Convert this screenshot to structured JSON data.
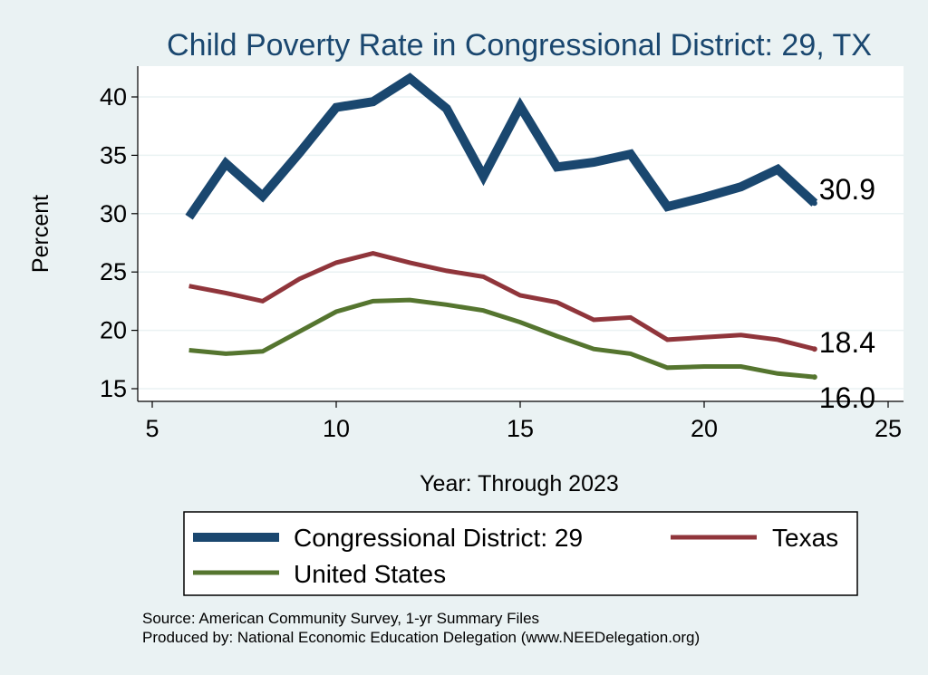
{
  "chart_data": {
    "type": "line",
    "title": "Child Poverty Rate in Congressional District:  29, TX",
    "xlabel": "Year: Through 2023",
    "ylabel": "Percent",
    "xlim": [
      5,
      25
    ],
    "ylim": [
      15,
      42
    ],
    "xticks": [
      5,
      10,
      15,
      20,
      25
    ],
    "yticks": [
      15,
      20,
      25,
      30,
      35,
      40
    ],
    "grid": true,
    "legend_position": "bottom",
    "series": [
      {
        "name": "Congressional District:  29",
        "color": "#1a476f",
        "x": [
          6,
          7,
          8,
          9,
          10,
          11,
          12,
          13,
          14,
          15,
          16,
          17,
          18,
          19,
          20,
          21,
          22,
          23
        ],
        "values": [
          29.7,
          34.3,
          31.5,
          35.2,
          39.1,
          39.6,
          41.6,
          39.0,
          33.2,
          39.2,
          34.0,
          34.4,
          35.1,
          30.6,
          31.4,
          32.3,
          33.8,
          30.9
        ],
        "end_label": "30.9"
      },
      {
        "name": "Texas",
        "color": "#90353b",
        "x": [
          6,
          7,
          8,
          9,
          10,
          11,
          12,
          13,
          14,
          15,
          16,
          17,
          18,
          19,
          20,
          21,
          22,
          23
        ],
        "values": [
          23.8,
          23.2,
          22.5,
          24.4,
          25.8,
          26.6,
          25.8,
          25.1,
          24.6,
          23.0,
          22.4,
          20.9,
          21.1,
          19.2,
          19.4,
          19.6,
          19.2,
          18.4
        ],
        "end_label": "18.4"
      },
      {
        "name": "United States",
        "color": "#55752f",
        "x": [
          6,
          7,
          8,
          9,
          10,
          11,
          12,
          13,
          14,
          15,
          16,
          17,
          18,
          19,
          20,
          21,
          22,
          23
        ],
        "values": [
          18.3,
          18.0,
          18.2,
          19.9,
          21.6,
          22.5,
          22.6,
          22.2,
          21.7,
          20.7,
          19.5,
          18.4,
          18.0,
          16.8,
          16.9,
          16.9,
          16.3,
          16.0
        ],
        "end_label": "16.0"
      }
    ]
  },
  "source_lines": [
    "Source: American Community Survey, 1-yr Summary Files",
    "Produced by: National Economic Education Delegation (www.NEEDelegation.org)"
  ]
}
